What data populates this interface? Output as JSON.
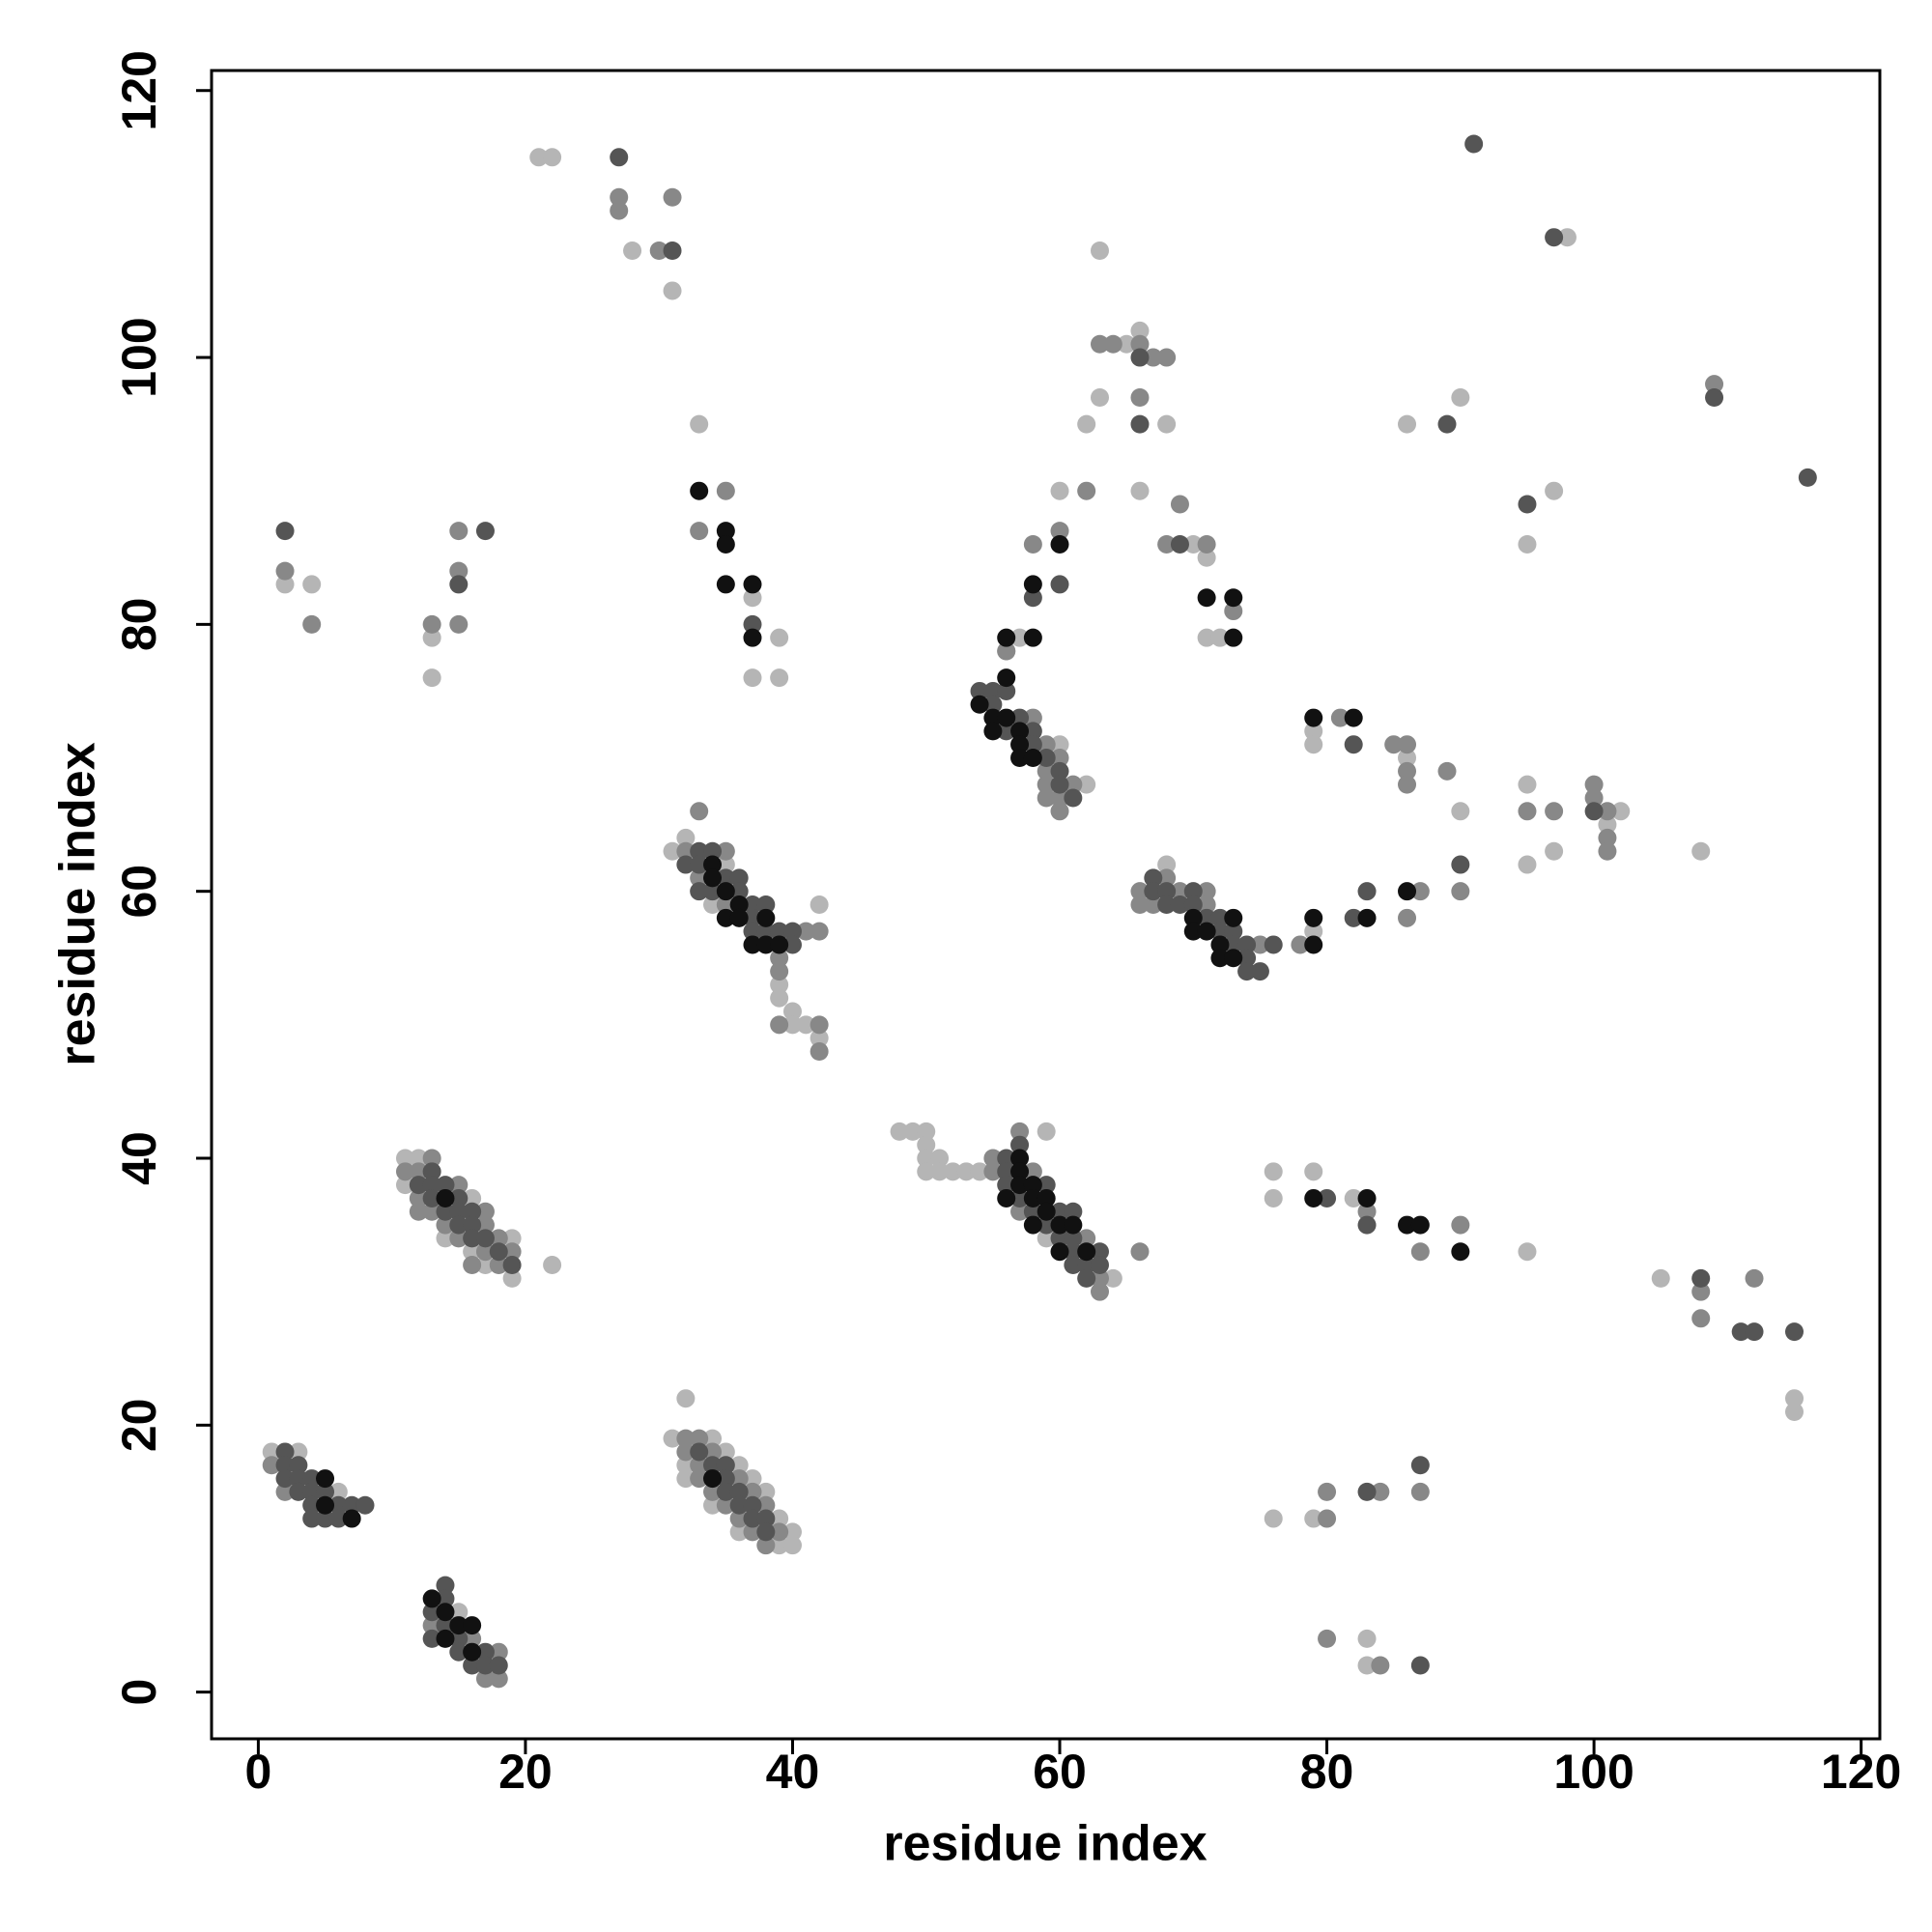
{
  "chart_data": {
    "type": "scatter",
    "xlabel": "residue index",
    "ylabel": "residue index",
    "xlim": [
      -3.5,
      121.4
    ],
    "ylim": [
      -3.5,
      121.5
    ],
    "xticks": [
      0,
      20,
      40,
      60,
      80,
      100,
      120
    ],
    "yticks": [
      0,
      20,
      40,
      60,
      80,
      100,
      120
    ],
    "grid": false,
    "series": [
      {
        "color": "#b5b5b5",
        "x": [
          1,
          3,
          6,
          15,
          11,
          12,
          11,
          16,
          14,
          19,
          16,
          17,
          22,
          19,
          32,
          31,
          34,
          35,
          32,
          36,
          32,
          37,
          38,
          34,
          39,
          36,
          40,
          39,
          40,
          32,
          31,
          35,
          34,
          42,
          39,
          39,
          40,
          40,
          41,
          42,
          48,
          49,
          50,
          59,
          50,
          50,
          51,
          50,
          51,
          52,
          53,
          54,
          59,
          64,
          60,
          62,
          57,
          60,
          62,
          63,
          65,
          63,
          66,
          68,
          66,
          70,
          71,
          71,
          72,
          68,
          79,
          79,
          79,
          86,
          90,
          86,
          90,
          95,
          97,
          98,
          95,
          95,
          97,
          101,
          102,
          108,
          2,
          4,
          13,
          13,
          21,
          22,
          28,
          31,
          33,
          37,
          37,
          39,
          39,
          76,
          76,
          79,
          82,
          95,
          105,
          115,
          115,
          76,
          79,
          83,
          83
        ],
        "values": [
          18,
          18,
          15,
          6,
          40,
          40,
          38,
          37,
          34,
          34,
          33,
          32,
          32,
          31,
          22,
          19,
          19,
          18,
          17,
          17,
          16,
          16,
          15,
          14,
          13,
          12,
          12,
          11,
          11,
          64,
          63,
          62,
          59,
          59,
          53,
          52,
          51,
          50,
          50,
          49,
          42,
          42,
          42,
          42,
          41,
          40,
          40,
          39,
          39,
          39,
          39,
          39,
          34,
          31,
          71,
          68,
          79,
          90,
          95,
          97,
          101,
          108,
          102,
          95,
          90,
          86,
          85,
          79,
          79,
          62,
          57,
          72,
          71,
          70,
          66,
          95,
          97,
          86,
          90,
          109,
          68,
          62,
          63,
          65,
          66,
          63,
          83,
          83,
          79,
          76,
          115,
          115,
          108,
          105,
          95,
          82,
          76,
          79,
          76,
          39,
          37,
          39,
          37,
          33,
          31,
          22,
          21,
          13,
          13,
          4,
          2
        ]
      },
      {
        "color": "#888888",
        "x": [
          1,
          2,
          13,
          16,
          18,
          17,
          18,
          13,
          11,
          12,
          15,
          12,
          12,
          13,
          17,
          14,
          17,
          15,
          18,
          17,
          19,
          16,
          18,
          32,
          33,
          32,
          34,
          33,
          33,
          36,
          34,
          37,
          35,
          38,
          36,
          37,
          39,
          38,
          33,
          32,
          35,
          33,
          35,
          41,
          42,
          39,
          39,
          39,
          42,
          42,
          57,
          55,
          55,
          58,
          57,
          62,
          66,
          63,
          63,
          56,
          58,
          59,
          60,
          59,
          59,
          61,
          59,
          60,
          60,
          56,
          58,
          60,
          62,
          63,
          64,
          66,
          67,
          68,
          66,
          69,
          68,
          71,
          68,
          66,
          69,
          71,
          66,
          67,
          71,
          75,
          78,
          87,
          86,
          90,
          81,
          85,
          86,
          86,
          86,
          89,
          95,
          97,
          100,
          100,
          101,
          101,
          101,
          109,
          2,
          4,
          13,
          15,
          15,
          15,
          27,
          27,
          30,
          31,
          33,
          35,
          73,
          83,
          87,
          90,
          108,
          108,
          112,
          80,
          80,
          84,
          87,
          80,
          84
        ],
        "values": [
          17,
          15,
          5,
          4,
          3,
          1,
          1,
          40,
          39,
          39,
          38,
          37,
          36,
          36,
          36,
          35,
          35,
          34,
          34,
          33,
          33,
          32,
          32,
          19,
          19,
          18,
          18,
          17,
          16,
          16,
          15,
          15,
          14,
          14,
          13,
          12,
          12,
          11,
          66,
          63,
          63,
          61,
          59,
          57,
          57,
          55,
          54,
          50,
          50,
          48,
          42,
          40,
          39,
          39,
          36,
          34,
          33,
          31,
          30,
          78,
          73,
          71,
          70,
          69,
          68,
          68,
          67,
          67,
          66,
          78,
          86,
          87,
          90,
          101,
          101,
          101,
          100,
          100,
          97,
          89,
          86,
          86,
          61,
          60,
          60,
          60,
          59,
          59,
          59,
          56,
          56,
          60,
          58,
          60,
          73,
          71,
          71,
          69,
          68,
          69,
          66,
          66,
          68,
          67,
          66,
          64,
          63,
          98,
          84,
          80,
          80,
          87,
          84,
          80,
          112,
          111,
          108,
          112,
          87,
          90,
          81,
          36,
          33,
          35,
          30,
          28,
          31,
          13,
          15,
          15,
          15,
          4,
          2
        ]
      },
      {
        "color": "#555555",
        "x": [
          2,
          2,
          3,
          2,
          3,
          4,
          3,
          4,
          5,
          4,
          6,
          7,
          8,
          4,
          5,
          6,
          14,
          14,
          13,
          14,
          13,
          15,
          15,
          17,
          16,
          17,
          18,
          13,
          12,
          13,
          14,
          13,
          15,
          14,
          15,
          16,
          15,
          16,
          16,
          17,
          18,
          19,
          33,
          34,
          35,
          35,
          35,
          36,
          36,
          37,
          37,
          38,
          38,
          33,
          34,
          32,
          33,
          35,
          36,
          33,
          34,
          36,
          37,
          38,
          37,
          37,
          38,
          39,
          40,
          40,
          57,
          56,
          56,
          56,
          59,
          57,
          58,
          60,
          61,
          59,
          60,
          61,
          61,
          63,
          61,
          62,
          63,
          62,
          54,
          55,
          56,
          55,
          57,
          56,
          58,
          58,
          59,
          60,
          60,
          61,
          58,
          60,
          66,
          66,
          69,
          67,
          67,
          68,
          70,
          68,
          69,
          70,
          71,
          72,
          72,
          73,
          73,
          74,
          76,
          74,
          74,
          75,
          82,
          83,
          90,
          82,
          89,
          91,
          95,
          97,
          109,
          116,
          100,
          2,
          15,
          17,
          27,
          31,
          37,
          80,
          83,
          108,
          111,
          112,
          115,
          83,
          87,
          87
        ],
        "values": [
          18,
          17,
          17,
          16,
          16,
          16,
          15,
          15,
          15,
          14,
          14,
          14,
          14,
          13,
          13,
          13,
          8,
          7,
          6,
          5,
          4,
          4,
          3,
          3,
          2,
          2,
          2,
          39,
          38,
          38,
          38,
          37,
          37,
          36,
          36,
          36,
          35,
          35,
          34,
          34,
          33,
          32,
          18,
          17,
          17,
          16,
          15,
          15,
          14,
          14,
          13,
          13,
          12,
          63,
          63,
          62,
          62,
          61,
          61,
          60,
          60,
          60,
          59,
          59,
          58,
          57,
          57,
          57,
          57,
          56,
          41,
          40,
          39,
          38,
          38,
          37,
          36,
          36,
          36,
          35,
          34,
          34,
          33,
          33,
          32,
          32,
          32,
          31,
          75,
          75,
          75,
          74,
          73,
          72,
          72,
          71,
          70,
          69,
          68,
          67,
          82,
          83,
          100,
          95,
          86,
          61,
          60,
          60,
          60,
          59,
          59,
          59,
          58,
          58,
          57,
          57,
          56,
          56,
          56,
          55,
          54,
          54,
          58,
          60,
          62,
          71,
          95,
          116,
          89,
          109,
          97,
          91,
          66,
          87,
          83,
          87,
          115,
          108,
          80,
          37,
          35,
          31,
          27,
          27,
          27,
          15,
          17,
          2
        ]
      },
      {
        "color": "#111111",
        "x": [
          5,
          5,
          7,
          13,
          14,
          15,
          16,
          14,
          16,
          14,
          34,
          34,
          34,
          35,
          36,
          35,
          36,
          38,
          37,
          38,
          39,
          57,
          57,
          57,
          58,
          56,
          58,
          59,
          59,
          58,
          60,
          61,
          60,
          62,
          56,
          54,
          55,
          56,
          55,
          57,
          57,
          57,
          58,
          56,
          58,
          58,
          60,
          71,
          73,
          73,
          33,
          35,
          35,
          35,
          37,
          37,
          70,
          73,
          70,
          71,
          72,
          72,
          73,
          79,
          79,
          83,
          86,
          79,
          82,
          79,
          83,
          86,
          87,
          90
        ],
        "values": [
          16,
          14,
          13,
          7,
          6,
          5,
          5,
          4,
          3,
          37,
          16,
          62,
          61,
          60,
          59,
          58,
          58,
          58,
          56,
          56,
          56,
          40,
          39,
          38,
          38,
          37,
          37,
          37,
          36,
          35,
          35,
          35,
          33,
          33,
          76,
          74,
          73,
          73,
          72,
          72,
          71,
          70,
          70,
          79,
          79,
          83,
          86,
          82,
          82,
          79,
          90,
          87,
          86,
          83,
          83,
          79,
          58,
          58,
          57,
          57,
          56,
          55,
          55,
          58,
          56,
          58,
          60,
          73,
          73,
          37,
          37,
          35,
          35,
          33
        ]
      }
    ]
  }
}
